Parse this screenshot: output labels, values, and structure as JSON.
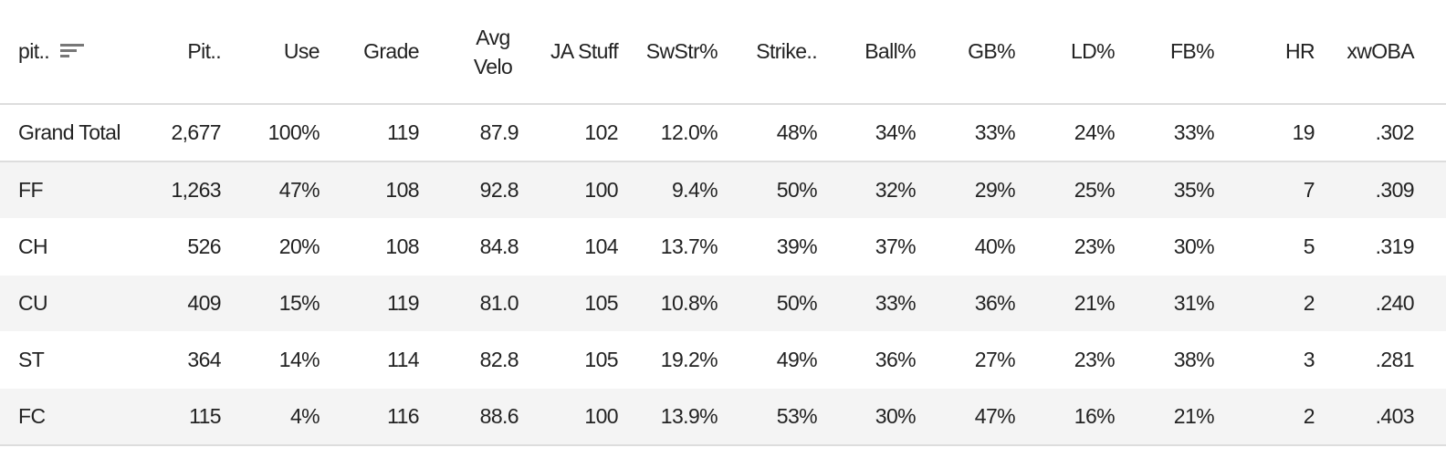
{
  "table": {
    "headers": [
      "pit..",
      "Pit..",
      "Use",
      "Grade",
      "Avg Velo",
      "JA Stuff",
      "SwStr%",
      "Strike..",
      "Ball%",
      "GB%",
      "LD%",
      "FB%",
      "HR",
      "xwOBA"
    ],
    "rows": [
      [
        "Grand Total",
        "2,677",
        "100%",
        "119",
        "87.9",
        "102",
        "12.0%",
        "48%",
        "34%",
        "33%",
        "24%",
        "33%",
        "19",
        ".302"
      ],
      [
        "FF",
        "1,263",
        "47%",
        "108",
        "92.8",
        "100",
        "9.4%",
        "50%",
        "32%",
        "29%",
        "25%",
        "35%",
        "7",
        ".309"
      ],
      [
        "CH",
        "526",
        "20%",
        "108",
        "84.8",
        "104",
        "13.7%",
        "39%",
        "37%",
        "40%",
        "23%",
        "30%",
        "5",
        ".319"
      ],
      [
        "CU",
        "409",
        "15%",
        "119",
        "81.0",
        "105",
        "10.8%",
        "50%",
        "33%",
        "36%",
        "21%",
        "31%",
        "2",
        ".240"
      ],
      [
        "ST",
        "364",
        "14%",
        "114",
        "82.8",
        "105",
        "19.2%",
        "49%",
        "36%",
        "27%",
        "23%",
        "38%",
        "3",
        ".281"
      ],
      [
        "FC",
        "115",
        "4%",
        "116",
        "88.6",
        "100",
        "13.9%",
        "53%",
        "30%",
        "47%",
        "16%",
        "21%",
        "2",
        ".403"
      ]
    ]
  }
}
